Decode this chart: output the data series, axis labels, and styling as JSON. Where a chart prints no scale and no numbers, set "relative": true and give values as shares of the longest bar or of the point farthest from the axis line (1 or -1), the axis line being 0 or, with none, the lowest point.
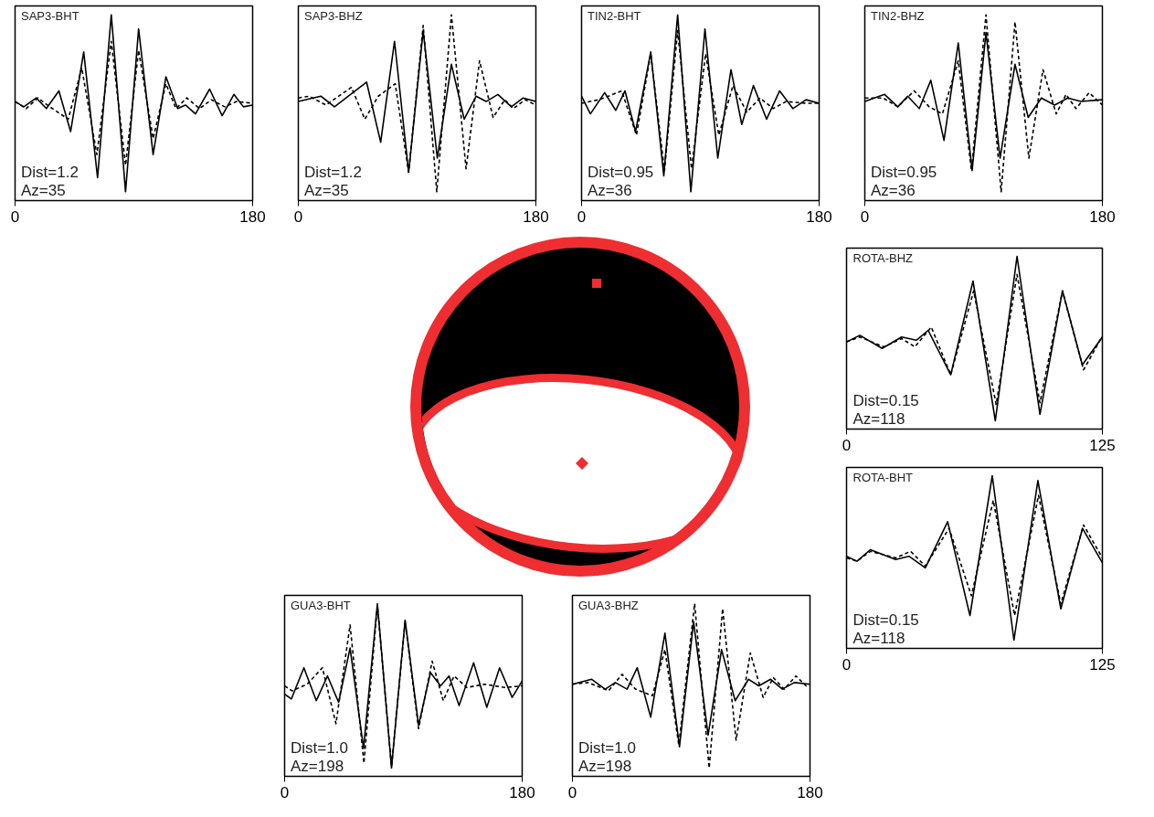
{
  "chart_data": [
    {
      "type": "line",
      "title": "SAP3-BHT",
      "annotations": [
        "Dist=1.2",
        "Az=35"
      ],
      "relative": true,
      "xlim": [
        0,
        180
      ],
      "xticks": [
        0,
        180
      ],
      "tick_labels": "x",
      "series": [
        {
          "color": "#000000",
          "line_style": "solid",
          "x": [
            0,
            6.6,
            16.1,
            23.7,
            33.2,
            42.1,
            52.0,
            62.5,
            72.9,
            83.7,
            93.6,
            104.6,
            114.3,
            123.2,
            129.1,
            136.7,
            147.4,
            156.9,
            165.8,
            173.0,
            180
          ],
          "values": [
            0.51,
            0.48,
            0.53,
            0.47,
            0.57,
            0.34,
            0.79,
            0.08,
            1.0,
            0,
            0.92,
            0.21,
            0.65,
            0.47,
            0.49,
            0.44,
            0.58,
            0.43,
            0.55,
            0.48,
            0.49
          ]
        },
        {
          "color": "#000000",
          "line_style": "dashed",
          "x": [
            0,
            8.4,
            17.3,
            26.3,
            40.3,
            50.5,
            62.0,
            72.9,
            83.7,
            93.6,
            104.6,
            114.3,
            121.9,
            130.1,
            139.8,
            148.7,
            158.9,
            167.9,
            180
          ],
          "values": [
            0.51,
            0.47,
            0.53,
            0.48,
            0.41,
            0.7,
            0.21,
            0.85,
            0.15,
            0.8,
            0.3,
            0.61,
            0.47,
            0.53,
            0.47,
            0.52,
            0.48,
            0.51,
            0.5
          ]
        }
      ]
    },
    {
      "type": "line",
      "title": "SAP3-BHZ",
      "annotations": [
        "Dist=1.2",
        "Az=35"
      ],
      "relative": true,
      "xlim": [
        0,
        180
      ],
      "xticks": [
        0,
        180
      ],
      "tick_labels": "x",
      "series": [
        {
          "color": "#000000",
          "line_style": "solid",
          "x": [
            0,
            17.1,
            27.4,
            51.7,
            62.4,
            72.9,
            83.6,
            94.6,
            105.3,
            116.0,
            125.7,
            134.7,
            142.3,
            151.2,
            161.4,
            170.4,
            180
          ],
          "values": [
            0.51,
            0.54,
            0.48,
            0.62,
            0.28,
            0.85,
            0.11,
            0.91,
            0.19,
            0.72,
            0.41,
            0.54,
            0.51,
            0.55,
            0.48,
            0.53,
            0.51
          ]
        },
        {
          "color": "#000000",
          "line_style": "dashed",
          "x": [
            0,
            8.2,
            21.0,
            40.2,
            50.4,
            60.6,
            73.4,
            83.6,
            94.6,
            104.9,
            116.0,
            127.1,
            137.3,
            147.6,
            156.5,
            162.9,
            171.9,
            180
          ],
          "values": [
            0.53,
            0.54,
            0.49,
            0.59,
            0.41,
            0.54,
            0.61,
            0.11,
            0.94,
            0,
            1.0,
            0.13,
            0.74,
            0.42,
            0.52,
            0.47,
            0.52,
            0.49
          ]
        }
      ]
    },
    {
      "type": "line",
      "title": "TIN2-BHT",
      "annotations": [
        "Dist=0.95",
        "Az=36"
      ],
      "relative": true,
      "xlim": [
        0,
        180
      ],
      "xticks": [
        0,
        180
      ],
      "tick_labels": "x",
      "series": [
        {
          "color": "#000000",
          "line_style": "solid",
          "x": [
            0,
            6.7,
            17.5,
            25.9,
            32.9,
            40.9,
            52.4,
            62.3,
            72.8,
            82.8,
            93.5,
            103.2,
            113.2,
            121.4,
            130.2,
            140.2,
            150.1,
            160.1,
            170.1,
            180
          ],
          "values": [
            0.54,
            0.44,
            0.56,
            0.46,
            0.57,
            0.34,
            0.79,
            0.09,
            1.0,
            0,
            0.92,
            0.19,
            0.69,
            0.38,
            0.6,
            0.41,
            0.57,
            0.47,
            0.52,
            0.5
          ]
        },
        {
          "color": "#000000",
          "line_style": "dashed",
          "x": [
            0,
            13.0,
            20.4,
            30.4,
            41.6,
            52.4,
            62.8,
            72.8,
            83.3,
            94.0,
            104.0,
            114.7,
            125.2,
            135.2,
            145.1,
            155.1,
            170.1,
            180
          ],
          "values": [
            0.5,
            0.52,
            0.54,
            0.57,
            0.32,
            0.78,
            0.12,
            0.91,
            0.13,
            0.78,
            0.32,
            0.6,
            0.45,
            0.53,
            0.47,
            0.51,
            0.5,
            0.5
          ]
        }
      ]
    },
    {
      "type": "line",
      "title": "TIN2-BHZ",
      "annotations": [
        "Dist=0.95",
        "Az=36"
      ],
      "relative": true,
      "xlim": [
        0,
        180
      ],
      "xticks": [
        0,
        180
      ],
      "tick_labels": "x",
      "series": [
        {
          "color": "#000000",
          "line_style": "solid",
          "x": [
            0,
            15,
            25,
            32.5,
            41.3,
            50,
            60,
            70.8,
            81.3,
            91.8,
            102.5,
            113.8,
            123.8,
            133.8,
            143.8,
            153.8,
            163.8,
            180
          ],
          "values": [
            0.51,
            0.55,
            0.48,
            0.54,
            0.47,
            0.63,
            0.29,
            0.84,
            0.12,
            0.9,
            0.19,
            0.72,
            0.42,
            0.53,
            0.49,
            0.53,
            0.51,
            0.52
          ]
        },
        {
          "color": "#000000",
          "line_style": "dashed",
          "x": [
            0,
            13.8,
            25,
            37.5,
            48.8,
            58.8,
            70.8,
            80.8,
            91.8,
            103.3,
            113.8,
            124.3,
            135,
            145,
            152.5,
            160,
            170,
            180
          ],
          "values": [
            0.53,
            0.53,
            0.48,
            0.57,
            0.48,
            0.44,
            0.74,
            0.12,
            1.0,
            0,
            0.96,
            0.19,
            0.69,
            0.44,
            0.55,
            0.47,
            0.56,
            0.49
          ]
        }
      ]
    },
    {
      "type": "line",
      "title": "ROTA-BHZ",
      "annotations": [
        "Dist=0.15",
        "Az=118"
      ],
      "relative": true,
      "xlim": [
        0,
        125
      ],
      "xticks": [
        0,
        125
      ],
      "tick_labels": "x",
      "series": [
        {
          "color": "#000000",
          "line_style": "solid",
          "x": [
            0,
            6.5,
            17.4,
            26.9,
            34.1,
            39.9,
            50.9,
            61.8,
            72.7,
            83.3,
            94.5,
            105.5,
            115.2,
            125
          ],
          "values": [
            0.48,
            0.52,
            0.44,
            0.51,
            0.49,
            0.55,
            0.28,
            0.85,
            0,
            1.0,
            0.04,
            0.79,
            0.34,
            0.51
          ]
        },
        {
          "color": "#000000",
          "line_style": "dashed",
          "x": [
            0,
            6.5,
            18.2,
            26.9,
            33.4,
            41.4,
            50.9,
            62.1,
            73.1,
            83.3,
            94.5,
            105.5,
            115.8,
            124.3
          ],
          "values": [
            0.48,
            0.51,
            0.45,
            0.5,
            0.45,
            0.57,
            0.28,
            0.79,
            0.1,
            0.89,
            0.11,
            0.79,
            0.31,
            0.5
          ]
        }
      ]
    },
    {
      "type": "line",
      "title": "ROTA-BHT",
      "annotations": [
        "Dist=0.15",
        "Az=118"
      ],
      "relative": true,
      "xlim": [
        0,
        125
      ],
      "xticks": [
        0,
        125
      ],
      "tick_labels": "x",
      "series": [
        {
          "color": "#000000",
          "line_style": "solid",
          "x": [
            0,
            5.1,
            11.6,
            24,
            30.5,
            38.5,
            49.4,
            60.3,
            71.2,
            81.8,
            93.5,
            104.7,
            115.3,
            125
          ],
          "values": [
            0.51,
            0.48,
            0.55,
            0.49,
            0.51,
            0.44,
            0.72,
            0.15,
            1.0,
            0,
            0.97,
            0.19,
            0.68,
            0.47
          ]
        },
        {
          "color": "#000000",
          "line_style": "dashed",
          "x": [
            0,
            5.1,
            11.6,
            24,
            31.3,
            38.5,
            50.1,
            61,
            71.7,
            82.1,
            93.8,
            104.7,
            115.8,
            125
          ],
          "values": [
            0.5,
            0.48,
            0.54,
            0.5,
            0.54,
            0.45,
            0.68,
            0.27,
            0.85,
            0.15,
            0.88,
            0.22,
            0.7,
            0.5
          ]
        }
      ]
    },
    {
      "type": "line",
      "title": "GUA3-BHT",
      "annotations": [
        "Dist=1.0",
        "Az=198"
      ],
      "relative": true,
      "xlim": [
        0,
        180
      ],
      "xticks": [
        0,
        180
      ],
      "tick_labels": "x",
      "series": [
        {
          "color": "#000000",
          "line_style": "solid",
          "x": [
            0,
            5.1,
            14.6,
            24.0,
            32.5,
            40.9,
            49.6,
            59.8,
            70.3,
            81.0,
            91.3,
            101.5,
            110.5,
            118.2,
            124.6,
            132.2,
            143.2,
            153.2,
            162.9,
            172.4,
            180
          ],
          "values": [
            0.45,
            0.42,
            0.61,
            0.41,
            0.56,
            0.4,
            0.73,
            0.12,
            1.0,
            0,
            0.9,
            0.26,
            0.58,
            0.5,
            0.56,
            0.38,
            0.64,
            0.37,
            0.61,
            0.43,
            0.53
          ]
        },
        {
          "color": "#000000",
          "line_style": "dashed",
          "x": [
            0,
            5.6,
            17.1,
            28.6,
            38.9,
            49.6,
            60.1,
            70.3,
            81.0,
            91.3,
            101.5,
            111.8,
            120.2,
            128.4,
            138.1,
            151.4,
            166.8,
            180
          ],
          "values": [
            0.5,
            0.47,
            0.51,
            0.61,
            0.27,
            0.87,
            0.03,
            0.99,
            0.01,
            0.89,
            0.24,
            0.65,
            0.41,
            0.56,
            0.49,
            0.51,
            0.49,
            0.5
          ]
        }
      ]
    },
    {
      "type": "line",
      "title": "GUA3-BHZ",
      "annotations": [
        "Dist=1.0",
        "Az=198"
      ],
      "relative": true,
      "xlim": [
        0,
        180
      ],
      "xticks": [
        0,
        180
      ],
      "tick_labels": "x",
      "series": [
        {
          "color": "#000000",
          "line_style": "solid",
          "x": [
            0,
            14.6,
            24.8,
            32.5,
            41.4,
            49.1,
            59.3,
            70.1,
            81.1,
            91.8,
            102.8,
            113.0,
            123.3,
            133.5,
            141.2,
            150.2,
            159.1,
            168.1,
            180
          ],
          "values": [
            0.51,
            0.54,
            0.48,
            0.52,
            0.48,
            0.61,
            0.31,
            0.82,
            0.13,
            0.89,
            0.2,
            0.72,
            0.41,
            0.54,
            0.5,
            0.54,
            0.48,
            0.52,
            0.51
          ]
        },
        {
          "color": "#000000",
          "line_style": "dashed",
          "x": [
            0,
            12.0,
            27.4,
            37.6,
            47.8,
            60.6,
            70.1,
            80.6,
            92.6,
            103.6,
            113.8,
            124.0,
            134.8,
            144.5,
            152.2,
            160.4,
            169.3,
            178.3
          ],
          "values": [
            0.51,
            0.52,
            0.47,
            0.57,
            0.48,
            0.44,
            0.72,
            0.14,
            1.0,
            0,
            0.97,
            0.17,
            0.7,
            0.43,
            0.55,
            0.48,
            0.56,
            0.49
          ]
        }
      ]
    }
  ]
}
